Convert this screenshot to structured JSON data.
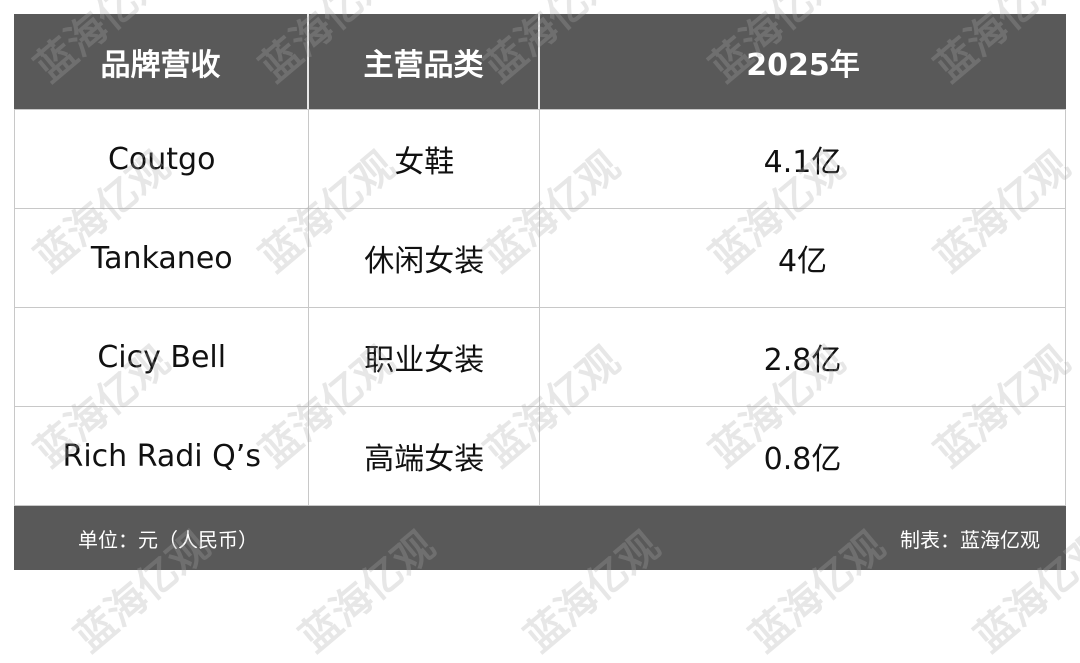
{
  "chart_data": {
    "type": "table",
    "columns": [
      "品牌营收",
      "主营品类",
      "2025年"
    ],
    "rows": [
      [
        "Coutgo",
        "女鞋",
        "4.1亿"
      ],
      [
        "Tankaneo",
        "休闲女装",
        "4亿"
      ],
      [
        "Cicy Bell",
        "职业女装",
        "2.8亿"
      ],
      [
        "Rich Radi Q’s",
        "高端女装",
        "0.8亿"
      ]
    ],
    "footer_left": "单位：元（人民币）",
    "footer_right": "制表：蓝海亿观"
  },
  "watermark": "蓝海亿观",
  "colors": {
    "header_bg": "#595959",
    "header_text": "#ffffff",
    "grid": "#c8c8c8"
  }
}
